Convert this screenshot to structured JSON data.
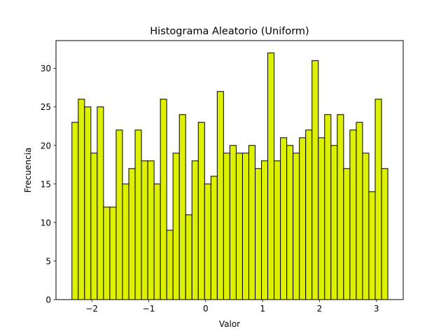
{
  "chart_data": {
    "type": "bar",
    "title": "Histograma Aleatorio (Uniform)",
    "xlabel": "Valor",
    "ylabel": "Frecuencia",
    "bar_color": "#dcf000",
    "edge_color": "#000000",
    "bin_start": -2.35,
    "bin_width": 0.111,
    "values": [
      23,
      26,
      25,
      19,
      25,
      12,
      12,
      22,
      15,
      17,
      22,
      18,
      18,
      15,
      26,
      9,
      19,
      24,
      11,
      18,
      23,
      15,
      16,
      27,
      19,
      20,
      19,
      19,
      20,
      17,
      18,
      32,
      18,
      21,
      20,
      19,
      21,
      22,
      31,
      21,
      24,
      20,
      24,
      17,
      22,
      23,
      19,
      14,
      26,
      17
    ],
    "xlim": [
      -2.63,
      3.47
    ],
    "ylim": [
      0,
      33.6
    ],
    "xticks": [
      -2,
      -1,
      0,
      1,
      2,
      3
    ],
    "xtick_labels": [
      "−2",
      "−1",
      "0",
      "1",
      "2",
      "3"
    ],
    "yticks": [
      0,
      5,
      10,
      15,
      20,
      25,
      30
    ],
    "ytick_labels": [
      "0",
      "5",
      "10",
      "15",
      "20",
      "25",
      "30"
    ],
    "grid": false,
    "legend": "none"
  }
}
